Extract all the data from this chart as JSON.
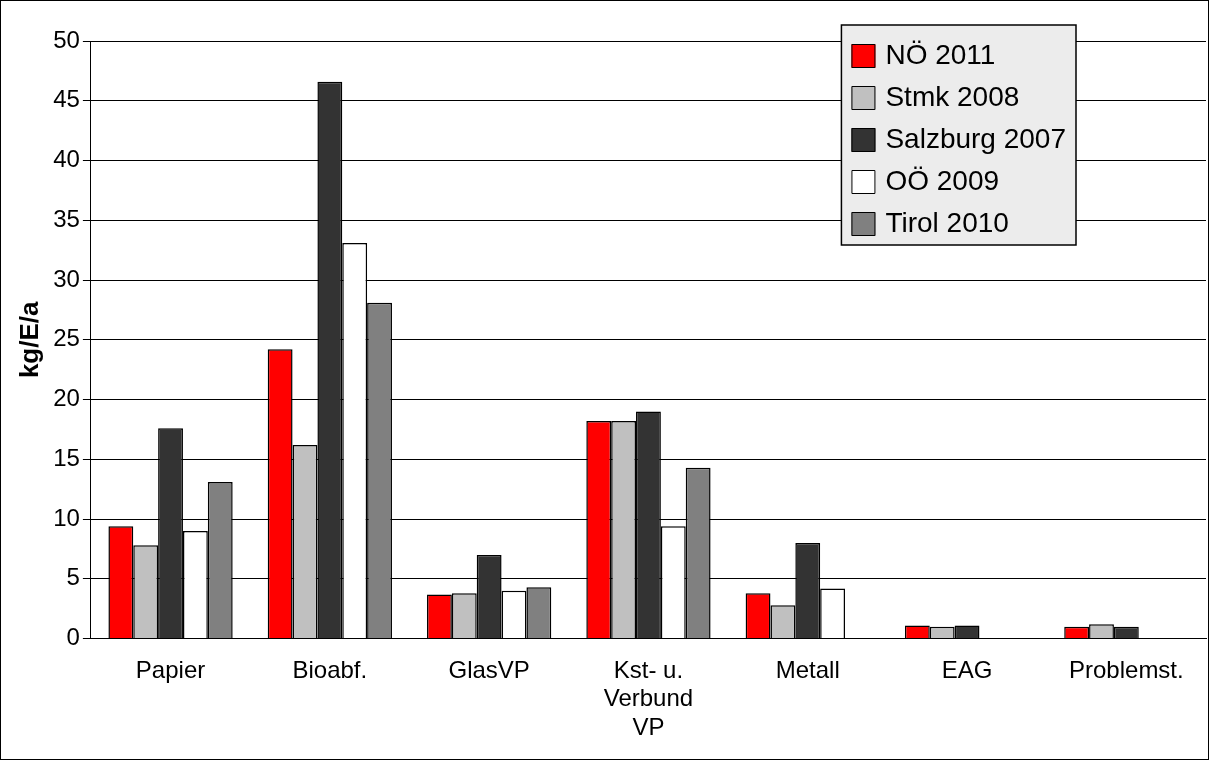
{
  "chart_data": {
    "type": "bar",
    "ylabel": "kg/E/a",
    "categories": [
      "Papier",
      "Bioabf.",
      "GlasVP",
      "Kst- u. Verbund VP",
      "Metall",
      "EAG",
      "Problemst."
    ],
    "series": [
      {
        "name": "NÖ 2011",
        "color": "#ff0000",
        "values": [
          9.4,
          24.2,
          3.7,
          18.2,
          3.8,
          1.1,
          1.0
        ]
      },
      {
        "name": "Stmk 2008",
        "color": "#c0c0c0",
        "values": [
          7.8,
          16.2,
          3.8,
          18.2,
          2.8,
          1.0,
          1.2
        ]
      },
      {
        "name": "Salzburg 2007",
        "color": "#333333",
        "values": [
          17.6,
          46.6,
          7.0,
          19.0,
          8.0,
          1.1,
          1.0
        ]
      },
      {
        "name": "OÖ 2009",
        "color": "#ffffff",
        "values": [
          9.0,
          33.1,
          4.0,
          9.4,
          4.2,
          null,
          null
        ]
      },
      {
        "name": "Tirol 2010",
        "color": "#808080",
        "values": [
          13.1,
          28.1,
          4.3,
          14.3,
          null,
          null,
          null
        ]
      }
    ],
    "ylim": [
      0,
      50
    ],
    "yticks": [
      0,
      5,
      10,
      15,
      20,
      25,
      30,
      35,
      40,
      45,
      50
    ],
    "grid": "y",
    "legend": "top right"
  }
}
